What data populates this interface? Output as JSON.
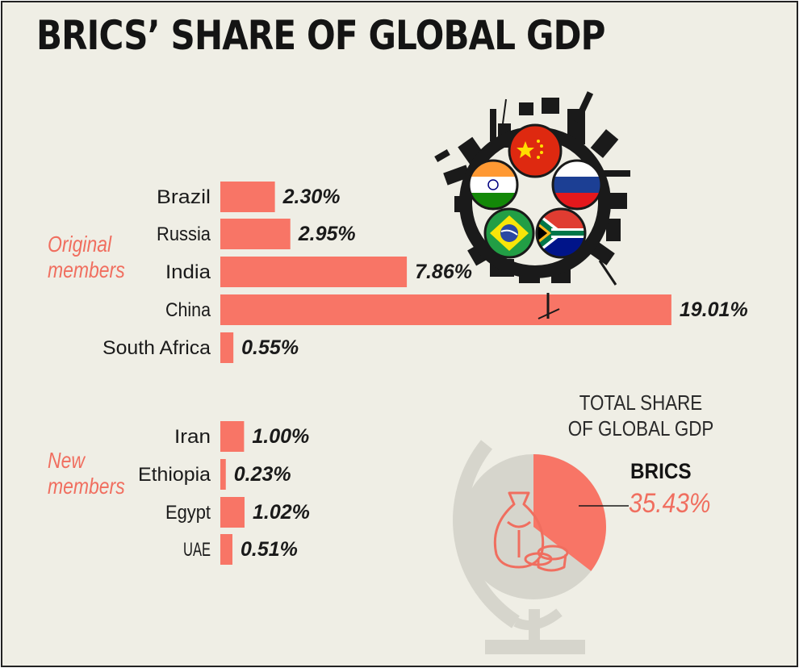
{
  "title": "BRICS’ SHARE OF GLOBAL GDP",
  "groups": {
    "original": "Original\nmembers",
    "new": "New\nmembers"
  },
  "colors": {
    "bar": "#f87566",
    "accent_text": "#f06e5f",
    "background": "#efeee5",
    "dark": "#1a1a1a",
    "globe": "#d6d5cc"
  },
  "icons": [
    "globe-icon",
    "money-bag-icon",
    "industry-wheel-icon",
    "china-flag-icon",
    "russia-flag-icon",
    "india-flag-icon",
    "brazil-flag-icon",
    "south-africa-flag-icon"
  ],
  "chart_data": [
    {
      "type": "bar",
      "orientation": "horizontal",
      "title": "BRICS’ SHARE OF GLOBAL GDP",
      "categories": [
        "Brazil",
        "Russia",
        "India",
        "China",
        "South Africa",
        "Iran",
        "Ethiopia",
        "Egypt",
        "UAE"
      ],
      "values": [
        2.3,
        2.95,
        7.86,
        19.01,
        0.55,
        1.0,
        0.23,
        1.02,
        0.51
      ],
      "value_labels": [
        "2.30%",
        "2.95%",
        "7.86%",
        "19.01%",
        "0.55%",
        "1.00%",
        "0.23%",
        "1.02%",
        "0.51%"
      ],
      "groups": [
        {
          "name": "Original members",
          "categories": [
            "Brazil",
            "Russia",
            "India",
            "China",
            "South Africa"
          ]
        },
        {
          "name": "New members",
          "categories": [
            "Iran",
            "Ethiopia",
            "Egypt",
            "UAE"
          ]
        }
      ],
      "unit": "%",
      "grid": false
    },
    {
      "type": "pie",
      "title": "TOTAL SHARE OF GLOBAL GDP",
      "labels": [
        "BRICS"
      ],
      "values": [
        35.43
      ],
      "value_labels": [
        "35.43%"
      ],
      "total": 100
    }
  ]
}
